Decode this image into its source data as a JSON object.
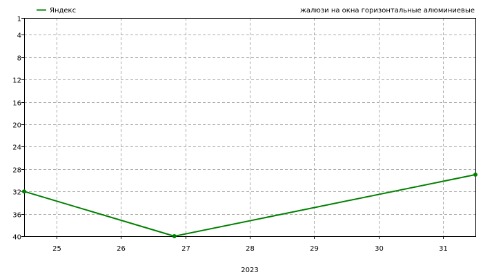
{
  "chart_data": {
    "type": "line",
    "title": "жалюзи на окна горизонтальные алюминиевые",
    "xlabel": "2023",
    "ylabel": "",
    "x_ticks": [
      25,
      26,
      27,
      28,
      29,
      30,
      31
    ],
    "xlim": [
      24.5,
      31.5
    ],
    "y_ticks": [
      1,
      4,
      8,
      12,
      16,
      20,
      24,
      28,
      32,
      36,
      40
    ],
    "ylim": [
      1,
      40
    ],
    "y_inverted": true,
    "grid": true,
    "legend_position": "top-left",
    "series": [
      {
        "name": "Яндекс",
        "color": "#008000",
        "x": [
          24.5,
          26.83,
          31.5
        ],
        "values": [
          32,
          40,
          29
        ]
      }
    ]
  }
}
